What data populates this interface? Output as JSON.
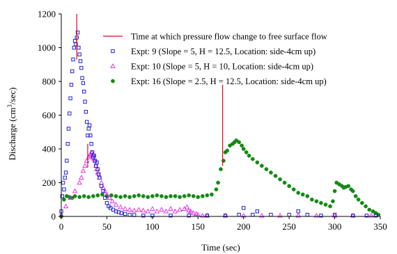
{
  "chart_data": {
    "type": "scatter",
    "xlabel": "Time (sec)",
    "ylabel_main": "Discharge (cm",
    "ylabel_sup": "3",
    "ylabel_tail": "/sec)",
    "xlim": [
      0,
      350
    ],
    "ylim": [
      0,
      1200
    ],
    "x_ticks": [
      "0",
      "50",
      "100",
      "150",
      "200",
      "250",
      "300",
      "350"
    ],
    "x_tick_values": [
      0,
      50,
      100,
      150,
      200,
      250,
      300,
      350
    ],
    "y_ticks": [
      "0",
      "200",
      "400",
      "600",
      "800",
      "1000",
      "1200"
    ],
    "y_tick_values": [
      0,
      200,
      400,
      600,
      800,
      1000,
      1200
    ],
    "grid": false,
    "legend_position": "top-right",
    "vertical_markers": {
      "label": "Time at which pressure flow change to free surface flow",
      "color": "#e8001c",
      "lines": [
        {
          "x": 17,
          "y_from": 930,
          "y_to": 1200
        },
        {
          "x": 29,
          "y_from": 290,
          "y_to": 430
        },
        {
          "x": 177,
          "y_from": 300,
          "y_to": 780
        }
      ]
    },
    "series": [
      {
        "name": "Expt: 9 (Slope = 5, H = 12.5, Location: side-4cm up)",
        "marker": "square",
        "color": "#1f1fd0",
        "x": [
          0,
          1,
          2,
          3,
          4,
          5,
          6,
          7,
          8,
          9,
          10,
          11,
          12,
          13,
          14,
          15,
          16,
          17,
          18,
          19,
          20,
          21,
          22,
          23,
          24,
          25,
          26,
          27,
          28,
          29,
          30,
          31,
          32,
          33,
          34,
          35,
          36,
          37,
          38,
          39,
          40,
          41,
          42,
          44,
          46,
          48,
          50,
          52,
          54,
          57,
          60,
          63,
          66,
          70,
          75,
          80,
          90,
          100,
          120,
          140,
          160,
          180,
          195,
          200,
          210,
          215,
          230,
          250,
          260,
          270,
          285,
          300,
          320,
          335,
          345
        ],
        "y": [
          30,
          120,
          200,
          160,
          230,
          260,
          330,
          430,
          520,
          610,
          700,
          780,
          860,
          930,
          1000,
          1040,
          1020,
          1060,
          1090,
          1000,
          960,
          920,
          880,
          820,
          790,
          740,
          680,
          620,
          560,
          480,
          520,
          540,
          480,
          430,
          380,
          350,
          360,
          330,
          300,
          320,
          280,
          250,
          230,
          180,
          150,
          110,
          80,
          60,
          50,
          40,
          30,
          25,
          20,
          15,
          10,
          8,
          5,
          5,
          5,
          5,
          5,
          5,
          10,
          50,
          10,
          30,
          10,
          10,
          30,
          10,
          5,
          10,
          5,
          5,
          5
        ]
      },
      {
        "name": "Expt: 10 (Slope = 5, H = 10, Location: side-4cm up)",
        "marker": "triangle",
        "color": "#e020e0",
        "x": [
          0,
          5,
          10,
          15,
          20,
          22,
          24,
          26,
          28,
          30,
          31,
          32,
          33,
          34,
          35,
          36,
          37,
          38,
          39,
          40,
          42,
          44,
          46,
          48,
          50,
          53,
          56,
          60,
          65,
          70,
          75,
          80,
          85,
          90,
          95,
          100,
          105,
          110,
          115,
          120,
          125,
          130,
          135,
          138,
          140,
          142,
          145,
          148,
          150,
          155,
          160,
          180,
          200,
          220,
          240,
          260,
          280,
          300,
          320,
          340
        ],
        "y": [
          10,
          60,
          110,
          150,
          200,
          230,
          270,
          300,
          330,
          350,
          360,
          370,
          380,
          360,
          370,
          340,
          330,
          300,
          280,
          260,
          230,
          200,
          170,
          150,
          130,
          110,
          90,
          70,
          55,
          45,
          40,
          35,
          40,
          35,
          30,
          45,
          30,
          40,
          30,
          45,
          30,
          40,
          45,
          55,
          35,
          30,
          20,
          15,
          10,
          5,
          5,
          5,
          5,
          5,
          5,
          5,
          5,
          5,
          5,
          5
        ]
      },
      {
        "name": "Expt: 16 (Slope = 2.5, H = 12.5, Location: side-4cm up)",
        "marker": "circle",
        "color": "#138a13",
        "x": [
          0,
          3,
          6,
          9,
          12,
          15,
          20,
          25,
          30,
          35,
          40,
          45,
          50,
          55,
          60,
          65,
          70,
          75,
          80,
          85,
          90,
          95,
          100,
          105,
          110,
          115,
          120,
          125,
          130,
          135,
          140,
          145,
          150,
          155,
          160,
          165,
          170,
          172,
          175,
          178,
          180,
          182,
          185,
          188,
          190,
          192,
          195,
          198,
          200,
          203,
          206,
          210,
          215,
          220,
          225,
          230,
          235,
          240,
          245,
          250,
          255,
          260,
          265,
          270,
          275,
          280,
          285,
          290,
          295,
          298,
          300,
          302,
          305,
          308,
          310,
          312,
          315,
          318,
          320,
          323,
          326,
          330,
          334,
          338,
          342,
          345,
          348
        ],
        "y": [
          0,
          100,
          120,
          115,
          110,
          120,
          115,
          120,
          115,
          120,
          125,
          130,
          120,
          125,
          120,
          115,
          120,
          115,
          120,
          125,
          120,
          115,
          120,
          125,
          120,
          115,
          120,
          120,
          115,
          120,
          125,
          120,
          115,
          120,
          125,
          130,
          160,
          200,
          280,
          330,
          380,
          390,
          420,
          430,
          440,
          450,
          440,
          420,
          400,
          380,
          360,
          340,
          320,
          300,
          280,
          260,
          240,
          220,
          200,
          180,
          160,
          140,
          130,
          120,
          100,
          90,
          80,
          70,
          60,
          90,
          150,
          200,
          190,
          180,
          170,
          175,
          180,
          160,
          150,
          120,
          100,
          80,
          60,
          40,
          30,
          20,
          10
        ]
      }
    ]
  }
}
